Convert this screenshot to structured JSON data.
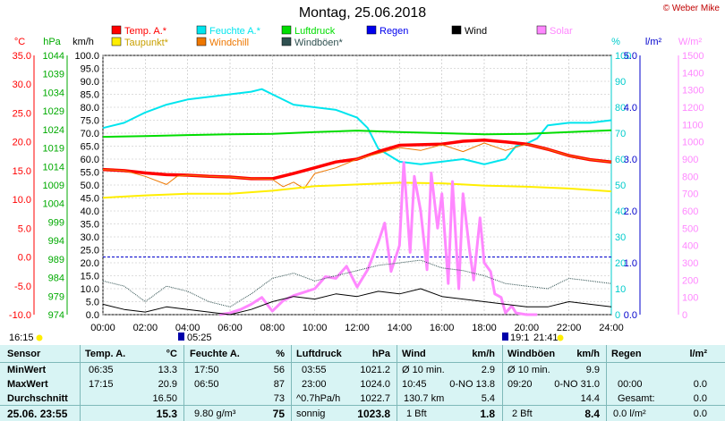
{
  "header": {
    "title": "Montag, 25.06.2018",
    "credit": "© Weber Mike"
  },
  "legend": [
    {
      "label": "Temp. A.*",
      "color": "#ff0000"
    },
    {
      "label": "Feuchte A.*",
      "color": "#00e5ee"
    },
    {
      "label": "Luftdruck",
      "color": "#00dd00"
    },
    {
      "label": "Regen",
      "color": "#0000ee"
    },
    {
      "label": "Wind",
      "color": "#000000"
    },
    {
      "label": "Solar",
      "color": "#ff88ff"
    },
    {
      "label": "Taupunkt*",
      "color": "#ffee00"
    },
    {
      "label": "Windchill",
      "color": "#ee7700"
    },
    {
      "label": "Windböen*",
      "color": "#2f5050"
    }
  ],
  "axis_titles": {
    "temp": "°C",
    "pressure": "hPa",
    "wind": "km/h",
    "humidity": "%",
    "rain": "l/m²",
    "solar": "W/m²"
  },
  "times": {
    "left_time": "16:15",
    "sunrise": "05:25",
    "sunset": "21:41",
    "moonrise": "19:1"
  },
  "chart_data": {
    "type": "line",
    "title": "Montag, 25.06.2018",
    "x_hours": [
      0,
      24
    ],
    "xticks": [
      "00:00",
      "02:00",
      "04:00",
      "06:00",
      "08:00",
      "10:00",
      "12:00",
      "14:00",
      "16:00",
      "18:00",
      "20:00",
      "22:00",
      "24:00"
    ],
    "axes": {
      "temp": {
        "range": [
          -10,
          35
        ],
        "ticks": [
          "35.0",
          "30.0",
          "25.0",
          "20.0",
          "15.0",
          "10.0",
          "5.0",
          "0.0",
          "-5.0",
          "-10.0"
        ]
      },
      "pressure": {
        "range": [
          974,
          1044
        ],
        "ticks": [
          "1044",
          "1039",
          "1034",
          "1029",
          "1024",
          "1019",
          "1014",
          "1009",
          "1004",
          "999",
          "994",
          "989",
          "984",
          "979",
          "974"
        ]
      },
      "wind": {
        "range": [
          0,
          100
        ],
        "ticks": [
          "100.0",
          "95.0",
          "90.0",
          "85.0",
          "80.0",
          "75.0",
          "70.0",
          "65.0",
          "60.0",
          "55.0",
          "50.0",
          "45.0",
          "40.0",
          "35.0",
          "30.0",
          "25.0",
          "20.0",
          "15.0",
          "10.0",
          "5.0",
          "0.0"
        ]
      },
      "humidity": {
        "range": [
          0,
          100
        ],
        "ticks": [
          "100",
          "90",
          "80",
          "70",
          "60",
          "50",
          "40",
          "30",
          "20",
          "10",
          "0"
        ]
      },
      "rain": {
        "range": [
          0,
          5
        ],
        "ticks": [
          "5.0",
          "4.0",
          "3.0",
          "2.0",
          "1.0",
          "0.0"
        ]
      },
      "solar": {
        "range": [
          0,
          1500
        ],
        "ticks": [
          "1500",
          "1400",
          "1300",
          "1200",
          "1100",
          "1000",
          "900",
          "800",
          "700",
          "600",
          "500",
          "400",
          "300",
          "200",
          "100",
          "0"
        ]
      }
    },
    "series": [
      {
        "name": "Feuchte A.*",
        "axis": "humidity",
        "color": "#00e5ee",
        "x": [
          0,
          1,
          2,
          3,
          4,
          5,
          6,
          7,
          7.5,
          8,
          9,
          10,
          11,
          12,
          12.5,
          13,
          14,
          15,
          16,
          17,
          17.5,
          18,
          18.5,
          19,
          19.5,
          20,
          20.5,
          21,
          22,
          23,
          24
        ],
        "y": [
          72,
          74,
          78,
          81,
          83,
          84,
          85,
          86,
          87,
          85,
          81,
          80,
          79,
          76,
          72,
          64,
          59,
          58,
          59,
          60,
          59,
          58,
          59,
          60,
          65,
          66,
          68,
          73,
          74,
          74,
          75
        ]
      },
      {
        "name": "Luftdruck",
        "axis": "pressure",
        "color": "#00dd00",
        "x": [
          0,
          2,
          4,
          6,
          8,
          10,
          12,
          14,
          16,
          18,
          20,
          22,
          24
        ],
        "y": [
          1022.0,
          1022.2,
          1022.5,
          1022.7,
          1022.8,
          1023.3,
          1023.7,
          1023.3,
          1023.0,
          1022.7,
          1022.8,
          1023.3,
          1023.8
        ]
      },
      {
        "name": "Temp. A.*",
        "axis": "temp",
        "color": "#ff0000",
        "x": [
          0,
          1,
          2,
          3,
          4,
          5,
          6,
          7,
          8,
          9,
          10,
          11,
          12,
          13,
          14,
          15,
          16,
          17,
          18,
          19,
          20,
          21,
          22,
          23,
          24
        ],
        "y": [
          15.2,
          15.0,
          14.6,
          14.3,
          14.2,
          14.0,
          13.9,
          13.6,
          13.6,
          14.5,
          15.5,
          16.5,
          17.0,
          18.3,
          19.4,
          19.5,
          19.6,
          20.1,
          20.3,
          20.0,
          19.6,
          18.7,
          17.6,
          16.9,
          16.5
        ]
      },
      {
        "name": "Windchill",
        "axis": "temp",
        "color": "#ee7700",
        "x": [
          0,
          1,
          2,
          3,
          3.5,
          4,
          5,
          6,
          7,
          8,
          8.5,
          9,
          9.5,
          10,
          11,
          12,
          13,
          14,
          15,
          16,
          17,
          18,
          19,
          20,
          21,
          22,
          23,
          24
        ],
        "y": [
          15.2,
          15.0,
          14.0,
          12.6,
          14.0,
          14.2,
          14.0,
          13.9,
          13.6,
          13.5,
          12.2,
          13.0,
          11.9,
          14.5,
          15.5,
          17.0,
          18.0,
          19.0,
          18.5,
          19.5,
          18.3,
          19.8,
          18.5,
          19.6,
          18.7,
          17.6,
          16.9,
          16.5
        ]
      },
      {
        "name": "Taupunkt*",
        "axis": "temp",
        "color": "#ffee00",
        "x": [
          0,
          2,
          4,
          6,
          8,
          10,
          12,
          14,
          16,
          18,
          20,
          22,
          24
        ],
        "y": [
          10.3,
          10.7,
          11.0,
          11.0,
          11.5,
          12.3,
          12.6,
          12.9,
          12.8,
          12.4,
          12.2,
          11.9,
          11.4
        ]
      },
      {
        "name": "Solar",
        "axis": "solar",
        "color": "#ff88ff",
        "x": [
          5.5,
          6,
          6.5,
          7,
          7.5,
          8,
          8.5,
          9,
          9.5,
          10,
          10.5,
          11,
          11.5,
          12,
          12.5,
          13,
          13.3,
          13.6,
          14,
          14.2,
          14.5,
          14.7,
          15,
          15.3,
          15.5,
          15.8,
          16,
          16.3,
          16.5,
          16.8,
          17,
          17.3,
          17.5,
          17.8,
          18,
          18.3,
          18.5,
          18.8,
          19,
          19.3,
          19.5,
          20,
          20.5
        ],
        "y": [
          0,
          10,
          30,
          60,
          100,
          20,
          80,
          110,
          130,
          150,
          220,
          210,
          280,
          160,
          260,
          420,
          530,
          250,
          400,
          880,
          360,
          800,
          600,
          260,
          820,
          500,
          700,
          180,
          770,
          150,
          700,
          380,
          200,
          560,
          300,
          250,
          120,
          100,
          10,
          50,
          10,
          0,
          0
        ]
      },
      {
        "name": "Windböen*",
        "axis": "wind",
        "color": "#2f5050",
        "x": [
          0,
          1,
          2,
          3,
          4,
          5,
          6,
          7,
          8,
          9,
          10,
          11,
          12,
          13,
          14,
          15,
          16,
          17,
          18,
          19,
          20,
          21,
          22,
          23,
          24
        ],
        "y": [
          13,
          11,
          5,
          11,
          9,
          5,
          3,
          8,
          14,
          16,
          13,
          15,
          17,
          19,
          20,
          21,
          18,
          17,
          15,
          12,
          11,
          10,
          14,
          13,
          12
        ]
      },
      {
        "name": "Wind",
        "axis": "wind",
        "color": "#000000",
        "x": [
          0,
          1,
          2,
          3,
          4,
          5,
          6,
          7,
          8,
          9,
          10,
          11,
          12,
          13,
          14,
          15,
          16,
          17,
          18,
          19,
          20,
          21,
          22,
          23,
          24
        ],
        "y": [
          4,
          2,
          1,
          3,
          2,
          1,
          0,
          2,
          5,
          7,
          6,
          8,
          7,
          9,
          8,
          10,
          7,
          6,
          5,
          4,
          3,
          3,
          5,
          4,
          3
        ]
      }
    ],
    "reference_lines": [
      {
        "axis": "temp",
        "value": 0.0,
        "color": "#0000cc",
        "style": "dashed"
      }
    ]
  },
  "table": {
    "headers": [
      "Sensor",
      "Temp. A.",
      "°C",
      "Feuchte A.",
      "%",
      "Luftdruck",
      "hPa",
      "Wind",
      "km/h",
      "Windböen",
      "km/h",
      "Regen",
      "l/m²"
    ],
    "rows": [
      {
        "label": "MinWert",
        "temp_time": "06:35",
        "temp": "13.3",
        "hum_time": "17:50",
        "hum": "56",
        "press_time": "03:55",
        "press": "1021.2",
        "wind_desc": "Ø 10 min.",
        "wind": "2.9",
        "gust_desc": "Ø 10 min.",
        "gust": "9.9",
        "rain_desc": "",
        "rain": ""
      },
      {
        "label": "MaxWert",
        "temp_time": "17:15",
        "temp": "20.9",
        "hum_time": "06:50",
        "hum": "87",
        "press_time": "23:00",
        "press": "1024.0",
        "wind_desc": "10:45",
        "wind_dir": "0-NO 13.8",
        "wind": "",
        "gust_desc": "09:20",
        "gust_dir": "0-NO 31.0",
        "gust": "",
        "rain_desc": "00:00",
        "rain": "0.0"
      },
      {
        "label": "Durchschnitt",
        "temp_time": "",
        "temp": "16.50",
        "hum_time": "",
        "hum": "73",
        "press_time": "^0.7hPa/h",
        "press": "1022.7",
        "wind_desc": "130.7 km",
        "wind": "5.4",
        "gust_desc": "",
        "gust": "14.4",
        "rain_desc": "Gesamt:",
        "rain": "0.0"
      },
      {
        "label": "25.06. 23:55",
        "temp_time": "",
        "temp": "15.3",
        "hum_time": "9.80 g/m³",
        "hum": "75",
        "press_time": "sonnig",
        "press": "1023.8",
        "wind_desc": "1 Bft",
        "wind": "1.8",
        "gust_desc": "2 Bft",
        "gust": "8.4",
        "rain_desc": "0.0 l/m²",
        "rain": "0.0"
      }
    ]
  }
}
